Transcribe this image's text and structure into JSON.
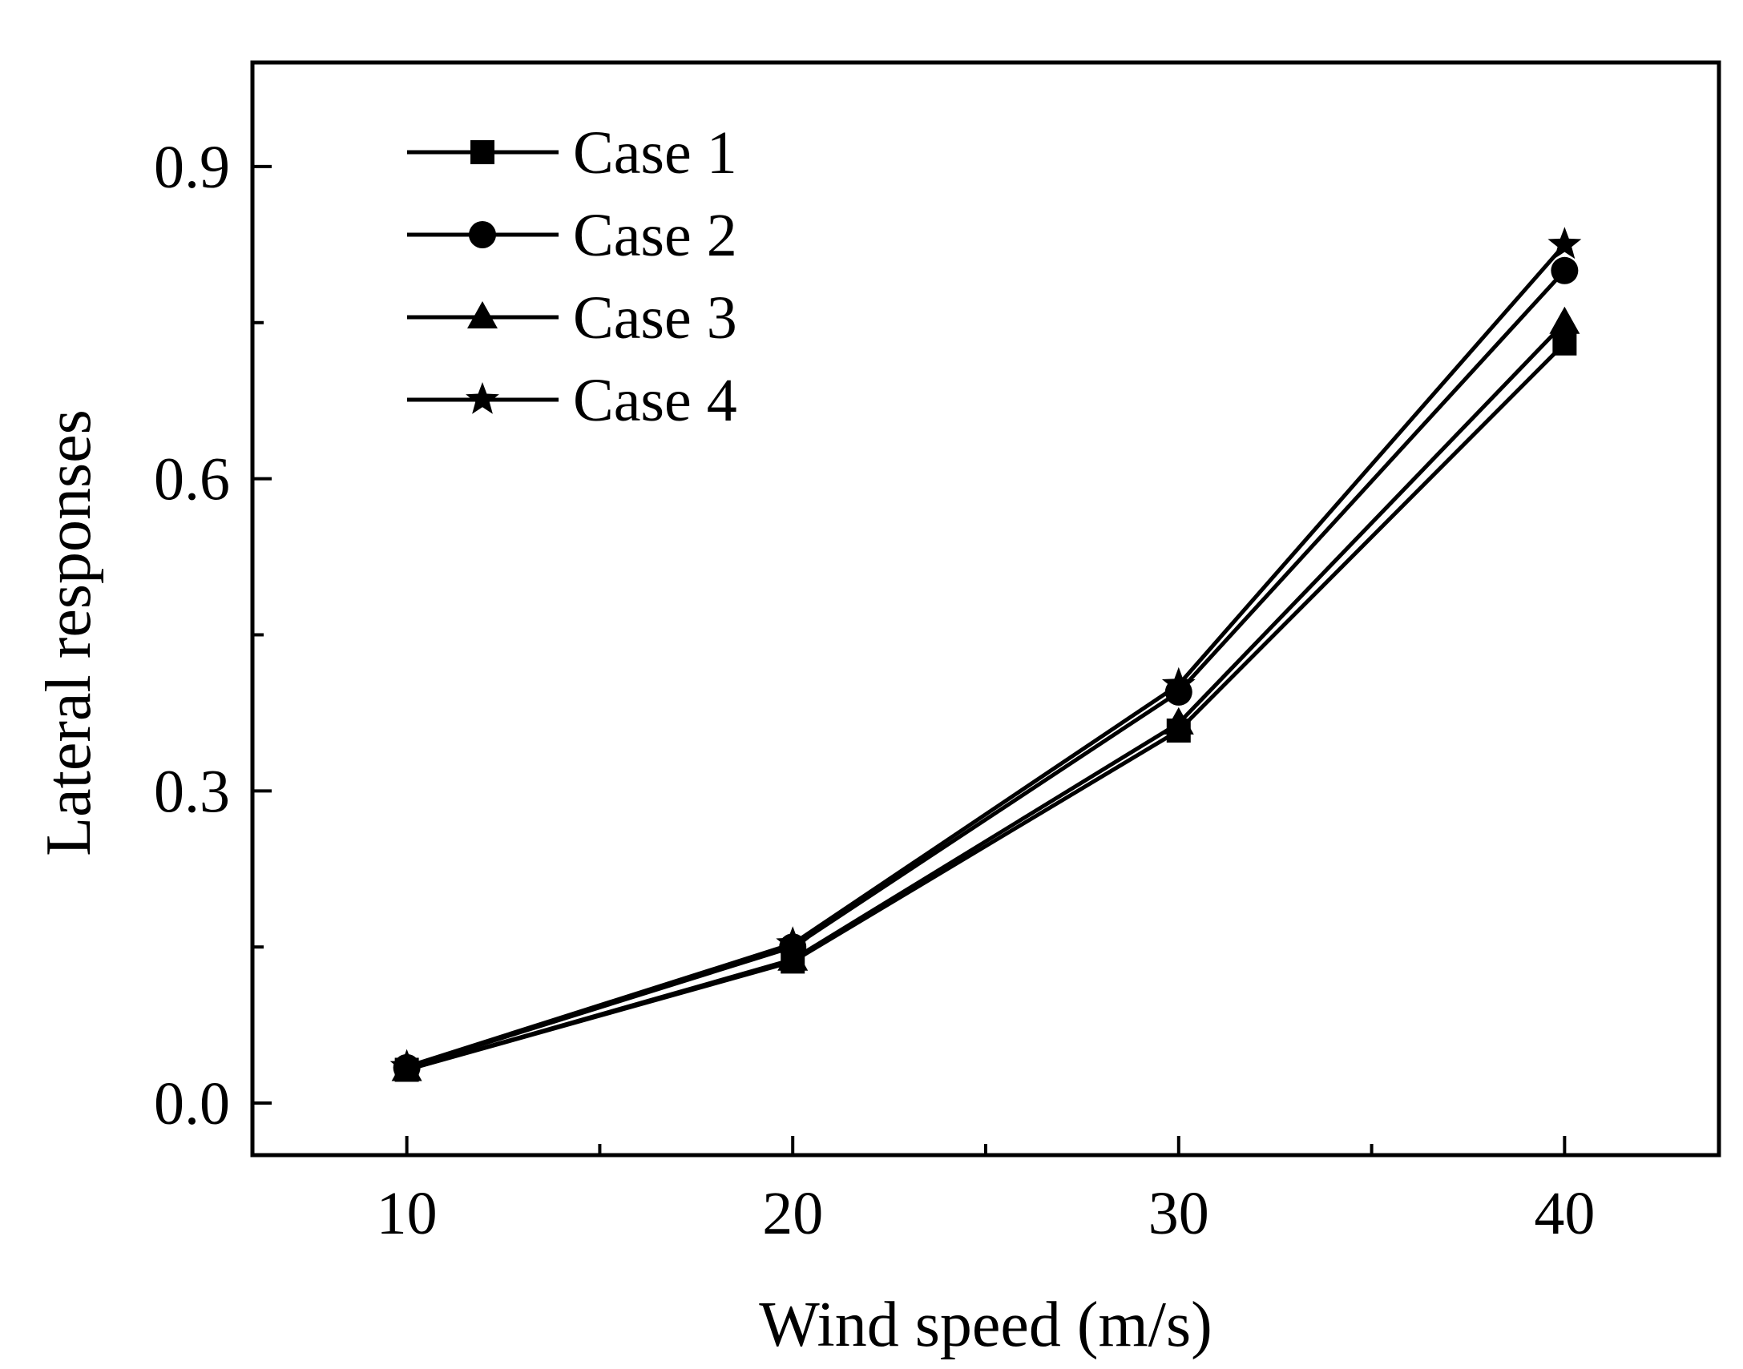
{
  "chart_data": {
    "type": "line",
    "title": "",
    "xlabel": "Wind speed (m/s)",
    "ylabel": "Lateral responses",
    "x": [
      10,
      20,
      30,
      40
    ],
    "xlim": [
      6,
      44
    ],
    "ylim": [
      -0.05,
      1.0
    ],
    "xticks": [
      "10",
      "20",
      "30",
      "40"
    ],
    "yticks": [
      "0.0",
      "0.3",
      "0.6",
      "0.9"
    ],
    "legend_position": "top-left",
    "grid": false,
    "series": [
      {
        "name": "Case 1",
        "marker": "square",
        "values": [
          0.032,
          0.136,
          0.358,
          0.73
        ]
      },
      {
        "name": "Case 2",
        "marker": "circle",
        "values": [
          0.034,
          0.15,
          0.395,
          0.8
        ]
      },
      {
        "name": "Case 3",
        "marker": "triangle",
        "values": [
          0.032,
          0.138,
          0.365,
          0.75
        ]
      },
      {
        "name": "Case 4",
        "marker": "star",
        "values": [
          0.035,
          0.153,
          0.402,
          0.825
        ]
      }
    ],
    "colors": {
      "line": "#000000",
      "background": "#ffffff"
    }
  }
}
